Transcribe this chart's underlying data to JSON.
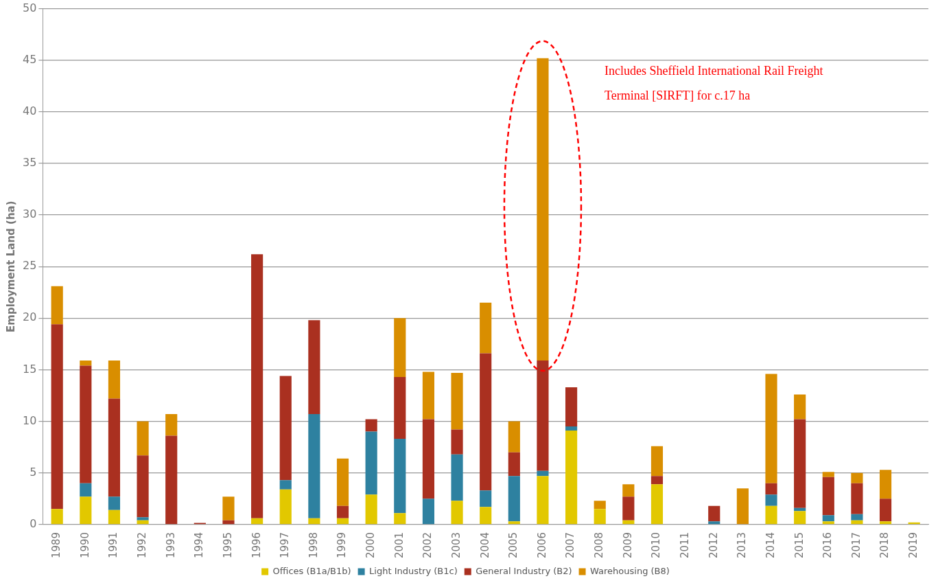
{
  "chart_data": {
    "type": "bar",
    "stacked": true,
    "ylabel": "Employment Land (ha)",
    "categories": [
      "1989",
      "1990",
      "1991",
      "1992",
      "1993",
      "1994",
      "1995",
      "1996",
      "1997",
      "1998",
      "1999",
      "2000",
      "2001",
      "2002",
      "2003",
      "2004",
      "2005",
      "2006",
      "2007",
      "2008",
      "2009",
      "2010",
      "2011",
      "2012",
      "2013",
      "2014",
      "2015",
      "2016",
      "2017",
      "2018",
      "2019"
    ],
    "series": [
      {
        "name": "Offices (B1a/B1b)",
        "color": "#e2c800",
        "values": [
          1.5,
          2.7,
          1.4,
          0.4,
          0,
          0,
          0,
          0.6,
          3.4,
          0.6,
          0.6,
          2.9,
          1.1,
          0,
          2.3,
          1.7,
          0.3,
          4.7,
          9.1,
          1.5,
          0.4,
          3.9,
          0,
          0,
          0,
          1.8,
          1.3,
          0.3,
          0.4,
          0.3,
          0.2
        ]
      },
      {
        "name": "Light Industry (B1c)",
        "color": "#2e81a0",
        "values": [
          0,
          1.3,
          1.3,
          0.3,
          0,
          0,
          0,
          0,
          0.9,
          10.1,
          0,
          6.1,
          7.2,
          2.5,
          4.5,
          1.6,
          4.4,
          0.5,
          0.4,
          0,
          0,
          0,
          0,
          0.3,
          0,
          1.1,
          0.3,
          0.6,
          0.6,
          0,
          0
        ]
      },
      {
        "name": "General Industry (B2)",
        "color": "#aa3020",
        "values": [
          17.9,
          11.4,
          9.5,
          6.0,
          8.6,
          0.15,
          0.4,
          25.6,
          10.1,
          9.1,
          1.2,
          1.2,
          6.0,
          7.7,
          2.4,
          13.3,
          2.3,
          10.7,
          3.8,
          0,
          2.3,
          0.8,
          0,
          1.5,
          0,
          1.1,
          8.6,
          3.7,
          3.0,
          2.2,
          0
        ]
      },
      {
        "name": "Warehousing (B8)",
        "color": "#d98e00",
        "values": [
          3.7,
          0.5,
          3.7,
          3.3,
          2.1,
          0,
          2.3,
          0,
          0,
          0,
          4.6,
          0,
          5.7,
          4.6,
          5.5,
          4.9,
          3.0,
          29.3,
          0,
          0.8,
          1.2,
          2.9,
          0,
          0,
          3.5,
          10.6,
          2.4,
          0.5,
          1.0,
          2.8,
          0
        ]
      }
    ],
    "ylim": [
      0,
      50
    ],
    "yticks": [
      0,
      5,
      10,
      15,
      20,
      25,
      30,
      35,
      40,
      45,
      50
    ],
    "grid": "y",
    "legend": "bottom",
    "annotations": [
      "Includes Sheffield International Rail Freight Terminal [SIRFT] for c.17 ha"
    ]
  }
}
